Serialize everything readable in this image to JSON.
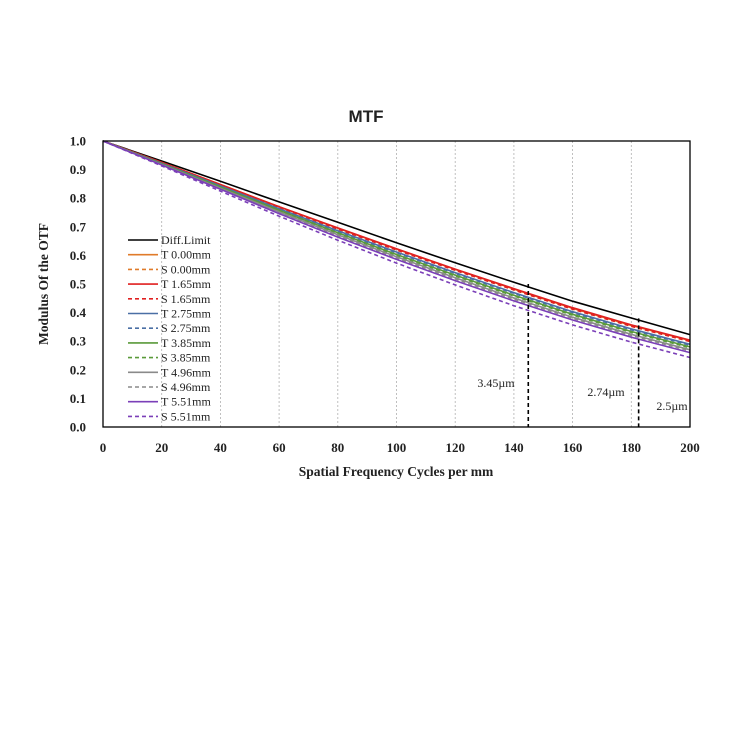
{
  "chart_data": {
    "type": "line",
    "title": "MTF",
    "xlabel": "Spatial Frequency Cycles per mm",
    "ylabel": "Modulus Of  the OTF",
    "xlim": [
      0,
      200
    ],
    "ylim": [
      0,
      1.0
    ],
    "x_ticks": [
      "0",
      "20",
      "40",
      "60",
      "80",
      "100",
      "120",
      "140",
      "160",
      "180",
      "200"
    ],
    "y_ticks": [
      "0.0",
      "0.1",
      "0.2",
      "0.3",
      "0.4",
      "0.5",
      "0.6",
      "0.7",
      "0.8",
      "0.9",
      "1.0"
    ],
    "grid": "vertical dashed",
    "legend_position": "left",
    "x": [
      0,
      20,
      40,
      60,
      80,
      100,
      120,
      140,
      160,
      180,
      200
    ],
    "series": [
      {
        "name": "Diff.Limit",
        "color": "#000000",
        "style": "solid",
        "values": [
          1.0,
          0.93,
          0.859,
          0.787,
          0.716,
          0.644,
          0.574,
          0.506,
          0.44,
          0.381,
          0.323
        ]
      },
      {
        "name": "T 0.00mm",
        "color": "#e07b2a",
        "style": "solid",
        "values": [
          1.0,
          0.925,
          0.848,
          0.77,
          0.695,
          0.622,
          0.551,
          0.482,
          0.415,
          0.355,
          0.302
        ]
      },
      {
        "name": "S 0.00mm",
        "color": "#e07b2a",
        "style": "dashed",
        "values": [
          1.0,
          0.924,
          0.847,
          0.769,
          0.694,
          0.621,
          0.55,
          0.481,
          0.414,
          0.354,
          0.301
        ]
      },
      {
        "name": "T 1.65mm",
        "color": "#e02020",
        "style": "solid",
        "values": [
          1.0,
          0.925,
          0.848,
          0.77,
          0.696,
          0.623,
          0.552,
          0.484,
          0.417,
          0.357,
          0.304
        ]
      },
      {
        "name": "S 1.65mm",
        "color": "#e02020",
        "style": "dashed",
        "values": [
          1.0,
          0.924,
          0.846,
          0.768,
          0.692,
          0.619,
          0.548,
          0.479,
          0.412,
          0.352,
          0.299
        ]
      },
      {
        "name": "T 2.75mm",
        "color": "#4a6fa5",
        "style": "solid",
        "values": [
          1.0,
          0.922,
          0.843,
          0.763,
          0.686,
          0.612,
          0.54,
          0.47,
          0.403,
          0.343,
          0.289
        ]
      },
      {
        "name": "S 2.75mm",
        "color": "#4a6fa5",
        "style": "dashed",
        "values": [
          1.0,
          0.921,
          0.841,
          0.761,
          0.683,
          0.609,
          0.537,
          0.467,
          0.4,
          0.34,
          0.286
        ]
      },
      {
        "name": "T 3.85mm",
        "color": "#5a9a3a",
        "style": "solid",
        "values": [
          1.0,
          0.92,
          0.839,
          0.758,
          0.679,
          0.603,
          0.531,
          0.461,
          0.394,
          0.334,
          0.28
        ]
      },
      {
        "name": "S 3.85mm",
        "color": "#5a9a3a",
        "style": "dashed",
        "values": [
          1.0,
          0.919,
          0.837,
          0.755,
          0.676,
          0.6,
          0.528,
          0.458,
          0.391,
          0.331,
          0.277
        ]
      },
      {
        "name": "T 4.96mm",
        "color": "#8a8a8a",
        "style": "solid",
        "values": [
          1.0,
          0.918,
          0.835,
          0.752,
          0.672,
          0.595,
          0.522,
          0.451,
          0.384,
          0.324,
          0.27
        ]
      },
      {
        "name": "S 4.96mm",
        "color": "#8a8a8a",
        "style": "dashed",
        "values": [
          1.0,
          0.917,
          0.833,
          0.749,
          0.668,
          0.591,
          0.518,
          0.447,
          0.38,
          0.32,
          0.266
        ]
      },
      {
        "name": "T 5.51mm",
        "color": "#7b3fb8",
        "style": "solid",
        "values": [
          1.0,
          0.916,
          0.831,
          0.746,
          0.664,
          0.586,
          0.512,
          0.441,
          0.374,
          0.314,
          0.26
        ]
      },
      {
        "name": "S 5.51mm",
        "color": "#7b3fb8",
        "style": "dashed",
        "values": [
          1.0,
          0.913,
          0.825,
          0.737,
          0.653,
          0.573,
          0.497,
          0.424,
          0.357,
          0.297,
          0.243
        ]
      }
    ],
    "annotations": [
      {
        "text": "3.45µm",
        "x": 144.9,
        "y_top": 0.5
      },
      {
        "text": "2.74µm",
        "x": 182.5,
        "y_top": 0.38
      },
      {
        "text": "2.5µm",
        "x": 200,
        "y_top": 0.32
      }
    ]
  }
}
